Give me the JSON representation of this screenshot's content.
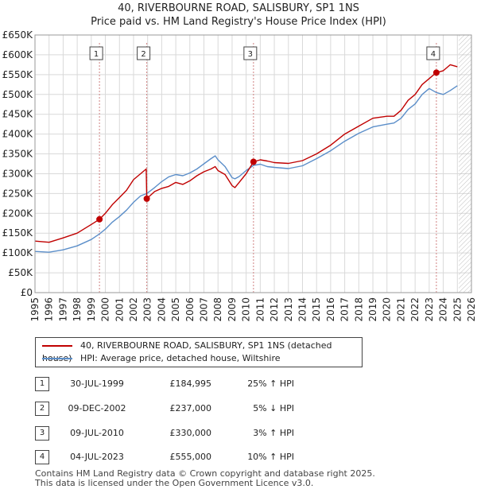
{
  "title_line1": "40, RIVERBOURNE ROAD, SALISBURY, SP1 1NS",
  "title_line2": "Price paid vs. HM Land Registry's House Price Index (HPI)",
  "colors": {
    "price_line": "#c00000",
    "hpi_line": "#5b8ec9",
    "marker": "#c00000",
    "vline": "#d08080",
    "grid": "#d9d9d9",
    "future_hatch": "#bfbfbf"
  },
  "chart_data": {
    "type": "line",
    "title": "40, RIVERBOURNE ROAD, SALISBURY, SP1 1NS — Price paid vs. HM Land Registry's House Price Index (HPI)",
    "xlabel": "",
    "ylabel": "",
    "xlim": [
      1995,
      2026
    ],
    "ylim": [
      0,
      650000
    ],
    "y_ticks": [
      0,
      50000,
      100000,
      150000,
      200000,
      250000,
      300000,
      350000,
      400000,
      450000,
      500000,
      550000,
      600000,
      650000
    ],
    "y_tick_labels": [
      "£0",
      "£50K",
      "£100K",
      "£150K",
      "£200K",
      "£250K",
      "£300K",
      "£350K",
      "£400K",
      "£450K",
      "£500K",
      "£550K",
      "£600K",
      "£650K"
    ],
    "x_ticks": [
      1995,
      1996,
      1997,
      1998,
      1999,
      2000,
      2001,
      2002,
      2003,
      2004,
      2005,
      2006,
      2007,
      2008,
      2009,
      2010,
      2011,
      2012,
      2013,
      2014,
      2015,
      2016,
      2017,
      2018,
      2019,
      2020,
      2021,
      2022,
      2023,
      2024,
      2025,
      2026
    ],
    "x_tick_labels": [
      "1995",
      "1996",
      "1997",
      "1998",
      "1999",
      "2000",
      "2001",
      "2002",
      "2003",
      "2004",
      "2005",
      "2006",
      "2007",
      "2008",
      "2009",
      "2010",
      "2011",
      "2012",
      "2013",
      "2014",
      "2015",
      "2016",
      "2017",
      "2018",
      "2019",
      "2020",
      "2021",
      "2022",
      "2023",
      "2024",
      "2025",
      "2026"
    ],
    "future_from": 2025.1,
    "series": [
      {
        "name": "40, RIVERBOURNE ROAD, SALISBURY, SP1 1NS (detached house)",
        "x": [
          1995.0,
          1996.0,
          1997.0,
          1998.0,
          1999.0,
          1999.58,
          2000.0,
          2000.5,
          2001.0,
          2001.5,
          2002.0,
          2002.5,
          2002.9,
          2002.94,
          2003.5,
          2004.0,
          2004.5,
          2005.0,
          2005.5,
          2006.0,
          2006.5,
          2007.0,
          2007.5,
          2007.8,
          2008.0,
          2008.5,
          2009.0,
          2009.2,
          2009.5,
          2010.0,
          2010.52,
          2011.0,
          2011.5,
          2012.0,
          2013.0,
          2014.0,
          2015.0,
          2016.0,
          2017.0,
          2018.0,
          2019.0,
          2020.0,
          2020.5,
          2021.0,
          2021.5,
          2022.0,
          2022.5,
          2023.0,
          2023.5,
          2024.0,
          2024.5,
          2025.0
        ],
        "values": [
          130000,
          127000,
          138000,
          150000,
          172000,
          184995,
          200000,
          222000,
          240000,
          258000,
          285000,
          300000,
          312000,
          237000,
          255000,
          263000,
          268000,
          278000,
          273000,
          282000,
          295000,
          305000,
          312000,
          318000,
          308000,
          298000,
          270000,
          265000,
          278000,
          300000,
          330000,
          335000,
          332000,
          328000,
          326000,
          333000,
          350000,
          372000,
          400000,
          420000,
          440000,
          445000,
          445000,
          460000,
          485000,
          500000,
          525000,
          540000,
          555000,
          560000,
          575000,
          570000
        ]
      },
      {
        "name": "HPI: Average price, detached house, Wiltshire",
        "x": [
          1995.0,
          1996.0,
          1997.0,
          1998.0,
          1999.0,
          1999.58,
          2000.0,
          2000.5,
          2001.0,
          2001.5,
          2002.0,
          2002.5,
          2002.94,
          2003.5,
          2004.0,
          2004.5,
          2005.0,
          2005.5,
          2006.0,
          2006.5,
          2007.0,
          2007.5,
          2007.8,
          2008.0,
          2008.5,
          2009.0,
          2009.2,
          2009.5,
          2010.0,
          2010.52,
          2011.0,
          2011.5,
          2012.0,
          2013.0,
          2014.0,
          2015.0,
          2016.0,
          2017.0,
          2018.0,
          2019.0,
          2020.0,
          2020.5,
          2021.0,
          2021.5,
          2022.0,
          2022.5,
          2023.0,
          2023.5,
          2024.0,
          2024.5,
          2025.0
        ],
        "values": [
          104000,
          102000,
          108000,
          118000,
          134000,
          148000,
          160000,
          178000,
          192000,
          208000,
          228000,
          244000,
          250000,
          265000,
          280000,
          292000,
          298000,
          295000,
          302000,
          312000,
          325000,
          338000,
          345000,
          335000,
          318000,
          290000,
          287000,
          293000,
          308000,
          321000,
          324000,
          318000,
          316000,
          313000,
          320000,
          338000,
          358000,
          382000,
          402000,
          418000,
          425000,
          428000,
          440000,
          462000,
          476000,
          500000,
          515000,
          505000,
          500000,
          510000,
          522000
        ]
      }
    ],
    "transactions": [
      {
        "label": "1",
        "x": 1999.58,
        "price": 184995,
        "date": "30-JUL-1999",
        "price_text": "£184,995",
        "hpi_text": "25% ↑ HPI"
      },
      {
        "label": "2",
        "x": 2002.94,
        "price": 237000,
        "date": "09-DEC-2002",
        "price_text": "£237,000",
        "hpi_text": "5% ↓ HPI"
      },
      {
        "label": "3",
        "x": 2010.52,
        "price": 330000,
        "date": "09-JUL-2010",
        "price_text": "£330,000",
        "hpi_text": "3% ↑ HPI"
      },
      {
        "label": "4",
        "x": 2023.51,
        "price": 555000,
        "date": "04-JUL-2023",
        "price_text": "£555,000",
        "hpi_text": "10% ↑ HPI"
      }
    ]
  },
  "legend": {
    "price_label": "40, RIVERBOURNE ROAD, SALISBURY, SP1 1NS (detached house)",
    "hpi_label": "HPI: Average price, detached house, Wiltshire"
  },
  "footer_line1": "Contains HM Land Registry data © Crown copyright and database right 2025.",
  "footer_line2": "This data is licensed under the Open Government Licence v3.0."
}
